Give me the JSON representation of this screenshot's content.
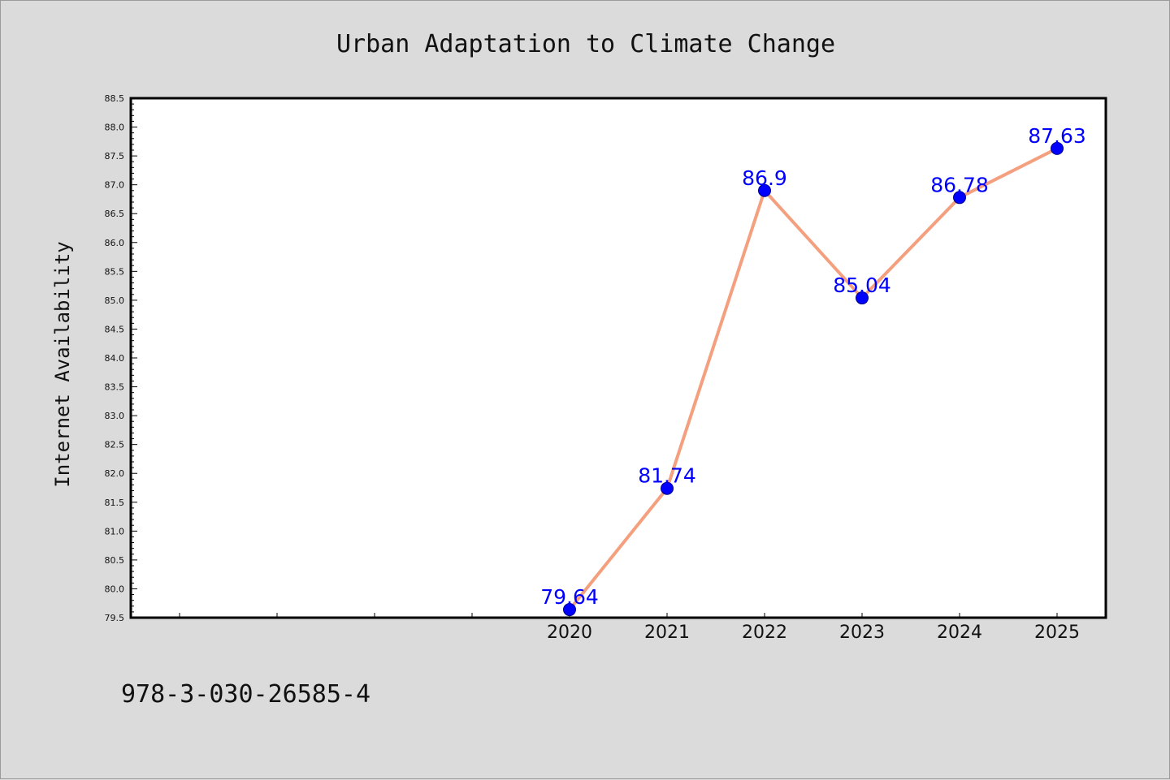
{
  "chart_data": {
    "type": "line",
    "title": "Urban Adaptation to Climate Change",
    "xlabel": "",
    "ylabel": "Internet Availability",
    "categories": [
      "2020",
      "2021",
      "2022",
      "2023",
      "2024",
      "2025"
    ],
    "series": [
      {
        "values": [
          79.64,
          81.74,
          86.9,
          85.04,
          86.78,
          87.63
        ],
        "data_labels": [
          "79.64",
          "81.74",
          "86.9",
          "85.04",
          "86.78",
          "87.63"
        ]
      }
    ],
    "ylim": [
      79.5,
      88.5
    ],
    "yticks": [
      "79.5",
      "80.0",
      "80.5",
      "81.0",
      "81.5",
      "82.0",
      "82.5",
      "83.0",
      "83.5",
      "84.0",
      "84.5",
      "85.0",
      "85.5",
      "86.0",
      "86.5",
      "87.0",
      "87.5",
      "88.0",
      "88.5"
    ],
    "grid": false,
    "line_color": "#f4a07f",
    "marker_color": "#0000ff",
    "label_color": "#0000ff",
    "background_color": "#dbdbdb",
    "plot_background_color": "#ffffff"
  },
  "footer": {
    "text": "978-3-030-26585-4"
  }
}
